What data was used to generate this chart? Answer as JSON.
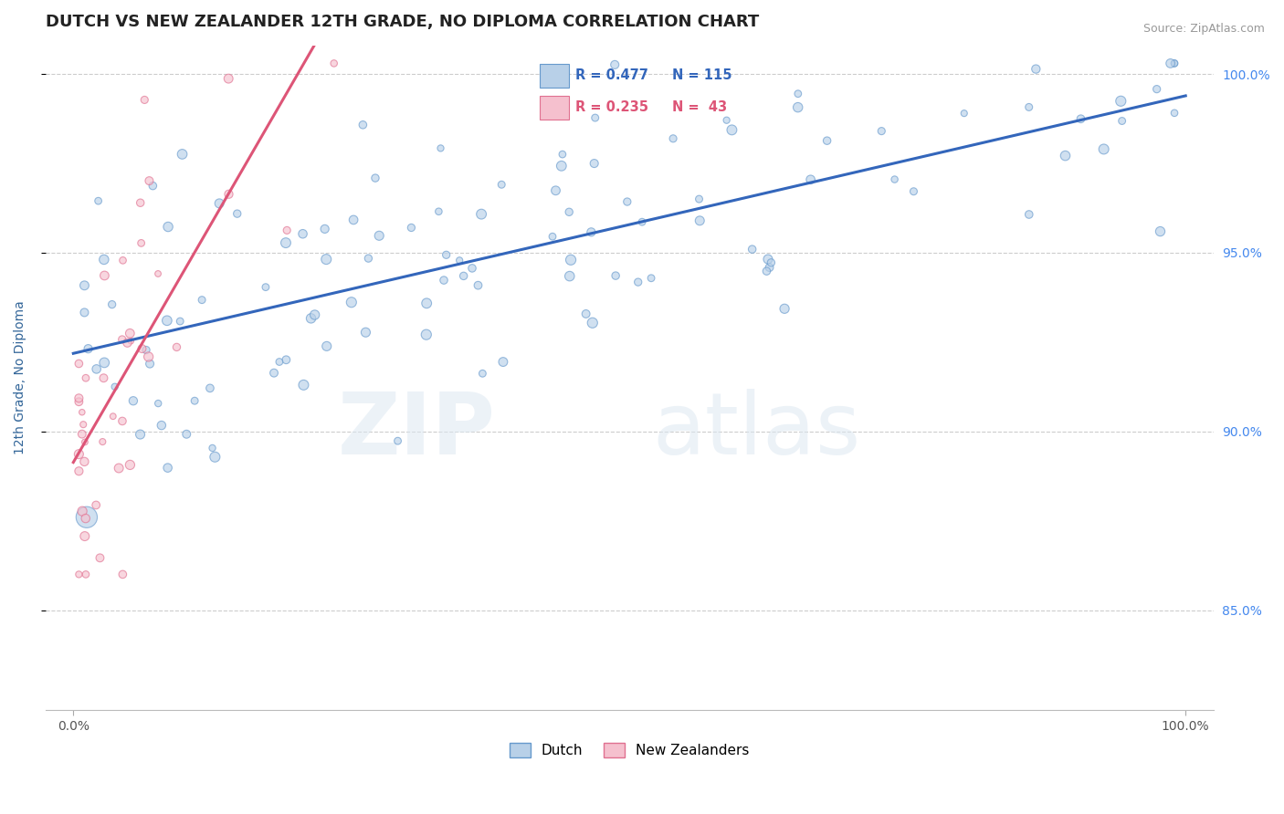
{
  "title": "DUTCH VS NEW ZEALANDER 12TH GRADE, NO DIPLOMA CORRELATION CHART",
  "source": "Source: ZipAtlas.com",
  "ylabel": "12th Grade, No Diploma",
  "legend_dutch_r": "R = 0.477",
  "legend_dutch_n": "N = 115",
  "legend_nz_r": "R = 0.235",
  "legend_nz_n": "N =  43",
  "watermark_zip": "ZIP",
  "watermark_atlas": "atlas",
  "dutch_color": "#b8d0e8",
  "dutch_edge_color": "#6699cc",
  "nz_color": "#f5c0ce",
  "nz_edge_color": "#e07090",
  "dutch_line_color": "#3366bb",
  "nz_line_color": "#dd5577",
  "background_color": "#ffffff",
  "grid_color": "#cccccc",
  "title_color": "#222222",
  "ylabel_color": "#336699",
  "right_tick_color": "#4488ee",
  "source_color": "#999999",
  "ylim": [
    0.822,
    1.008
  ],
  "xlim": [
    -0.025,
    1.025
  ],
  "yticks": [
    0.85,
    0.9,
    0.95,
    1.0
  ],
  "ytick_labels": [
    "85.0%",
    "90.0%",
    "95.0%",
    "100.0%"
  ],
  "xtick_labels": [
    "0.0%",
    "100.0%"
  ],
  "title_fontsize": 13,
  "axis_fontsize": 10,
  "dot_size": 40,
  "alpha": 0.65
}
